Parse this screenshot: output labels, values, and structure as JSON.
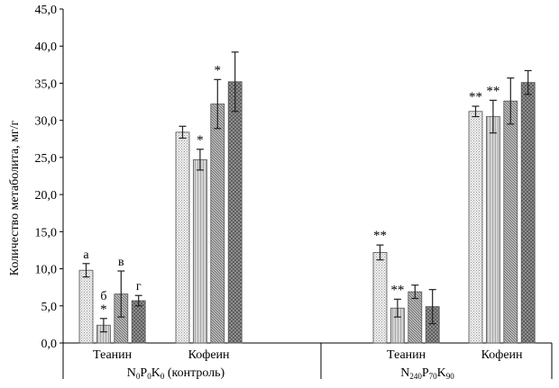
{
  "chart_data": {
    "type": "bar",
    "title": "",
    "ylabel": "Количество метаболита, мг/г",
    "ylim": [
      0,
      45
    ],
    "ytick_labels": [
      "0,0",
      "5,0",
      "10,0",
      "15,0",
      "20,0",
      "25,0",
      "30,0",
      "35,0",
      "40,0",
      "45,0"
    ],
    "grid": false,
    "legend": "none",
    "treatments": [
      {
        "label_parts": [
          {
            "t": "N"
          },
          {
            "t": "0",
            "sub": true
          },
          {
            "t": "P"
          },
          {
            "t": "0",
            "sub": true
          },
          {
            "t": "K"
          },
          {
            "t": "0",
            "sub": true
          },
          {
            "t": " (контроль)"
          }
        ],
        "groups": [
          {
            "label": "Теанин",
            "bars": [
              {
                "value": 9.8,
                "err": 0.9,
                "ann": "а"
              },
              {
                "value": 2.4,
                "err": 0.9,
                "ann": "б\n*"
              },
              {
                "value": 6.6,
                "err": 3.1,
                "ann": "в"
              },
              {
                "value": 5.7,
                "err": 0.7,
                "ann": "г"
              }
            ]
          },
          {
            "label": "Кофеин",
            "bars": [
              {
                "value": 28.4,
                "err": 0.8,
                "ann": ""
              },
              {
                "value": 24.7,
                "err": 1.4,
                "ann": "*"
              },
              {
                "value": 32.2,
                "err": 3.3,
                "ann": "*"
              },
              {
                "value": 35.2,
                "err": 4.0,
                "ann": ""
              }
            ]
          }
        ]
      },
      {
        "label_parts": [
          {
            "t": "N"
          },
          {
            "t": "240",
            "sub": true
          },
          {
            "t": "P"
          },
          {
            "t": "70",
            "sub": true
          },
          {
            "t": "K"
          },
          {
            "t": "90",
            "sub": true
          }
        ],
        "groups": [
          {
            "label": "Теанин",
            "bars": [
              {
                "value": 12.2,
                "err": 1.0,
                "ann": "**"
              },
              {
                "value": 4.7,
                "err": 1.2,
                "ann": "**"
              },
              {
                "value": 6.9,
                "err": 0.9,
                "ann": ""
              },
              {
                "value": 4.9,
                "err": 2.3,
                "ann": ""
              }
            ]
          },
          {
            "label": "Кофеин",
            "bars": [
              {
                "value": 31.2,
                "err": 0.7,
                "ann": "**"
              },
              {
                "value": 30.5,
                "err": 2.2,
                "ann": "**"
              },
              {
                "value": 32.6,
                "err": 3.1,
                "ann": ""
              },
              {
                "value": 35.1,
                "err": 1.6,
                "ann": ""
              }
            ]
          }
        ]
      }
    ]
  }
}
